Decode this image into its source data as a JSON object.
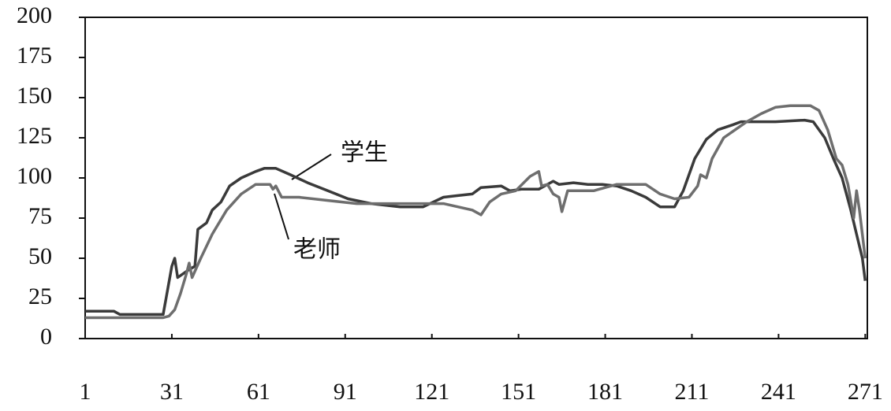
{
  "chart_data": {
    "type": "line",
    "xlim": [
      1,
      272
    ],
    "xticks": [
      1,
      31,
      61,
      91,
      121,
      151,
      181,
      211,
      241,
      271
    ],
    "ylim": [
      0,
      200
    ],
    "yticks": [
      0,
      25,
      50,
      75,
      100,
      125,
      150,
      175,
      200
    ],
    "series": [
      {
        "name": "学生",
        "color": "#3a3a3a",
        "x": [
          1,
          11,
          13,
          28,
          29,
          31,
          32,
          33,
          37,
          39,
          40,
          43,
          45,
          48,
          51,
          55,
          60,
          63,
          67,
          72,
          78,
          85,
          92,
          100,
          110,
          118,
          125,
          130,
          135,
          138,
          145,
          148,
          152,
          158,
          163,
          165,
          170,
          175,
          180,
          185,
          190,
          195,
          200,
          205,
          208,
          212,
          216,
          220,
          225,
          228,
          240,
          250,
          253,
          257,
          260,
          263,
          266,
          268,
          270,
          271
        ],
        "values": [
          17,
          17,
          15,
          15,
          25,
          45,
          50,
          38,
          43,
          45,
          68,
          72,
          80,
          85,
          95,
          100,
          104,
          106,
          106,
          102,
          97,
          92,
          87,
          84,
          82,
          82,
          88,
          89,
          90,
          94,
          95,
          92,
          93,
          93,
          98,
          96,
          97,
          96,
          96,
          95,
          92,
          88,
          82,
          82,
          92,
          112,
          124,
          130,
          133,
          135,
          135,
          136,
          135,
          125,
          112,
          100,
          80,
          65,
          50,
          36
        ]
      },
      {
        "name": "老师",
        "color": "#6e6e6e",
        "x": [
          1,
          28,
          30,
          32,
          34,
          36,
          37,
          38,
          41,
          45,
          50,
          55,
          60,
          65,
          66,
          67,
          69,
          75,
          85,
          95,
          110,
          125,
          135,
          138,
          141,
          145,
          150,
          155,
          158,
          159,
          161,
          163,
          165,
          166,
          168,
          172,
          177,
          181,
          185,
          195,
          200,
          205,
          210,
          213,
          214,
          216,
          218,
          222,
          226,
          230,
          235,
          240,
          245,
          252,
          255,
          258,
          261,
          263,
          265,
          267,
          268,
          269,
          271
        ],
        "values": [
          13,
          13,
          14,
          18,
          28,
          40,
          47,
          38,
          50,
          65,
          80,
          90,
          96,
          96,
          93,
          95,
          88,
          88,
          86,
          84,
          84,
          84,
          80,
          77,
          85,
          90,
          92,
          101,
          104,
          95,
          96,
          90,
          88,
          79,
          92,
          92,
          92,
          94,
          96,
          96,
          90,
          87,
          88,
          95,
          102,
          100,
          112,
          125,
          130,
          135,
          140,
          144,
          145,
          145,
          142,
          130,
          112,
          108,
          96,
          75,
          92,
          80,
          50
        ]
      }
    ]
  }
}
